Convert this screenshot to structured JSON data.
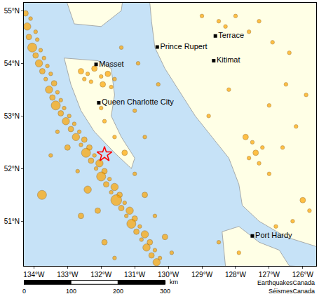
{
  "chart_data": {
    "type": "scatter",
    "xlim": [
      -134.3,
      -125.6
    ],
    "ylim": [
      50.15,
      55.15
    ],
    "grid": false,
    "xticks": [
      {
        "value": -134,
        "label": "134°W"
      },
      {
        "value": -133,
        "label": "133°W"
      },
      {
        "value": -132,
        "label": "132°W"
      },
      {
        "value": -131,
        "label": "131°W"
      },
      {
        "value": -130,
        "label": "130°W"
      },
      {
        "value": -129,
        "label": "129°W"
      },
      {
        "value": -128,
        "label": "128°W"
      },
      {
        "value": -127,
        "label": "127°W"
      },
      {
        "value": -126,
        "label": "126°W"
      }
    ],
    "yticks": [
      {
        "value": 51,
        "label": "51°N"
      },
      {
        "value": 52,
        "label": "52°N"
      },
      {
        "value": 53,
        "label": "53°N"
      },
      {
        "value": 54,
        "label": "54°N"
      },
      {
        "value": 55,
        "label": "55°N"
      }
    ],
    "land": [
      {
        "x": [
          -130.6,
          -130.5,
          -130.4,
          -130.1,
          -129.5,
          -129.2,
          -128.7,
          -128.2,
          -127.9,
          -127.8,
          -127.3,
          -126.5,
          -125.0,
          -125.0,
          -130.6
        ],
        "y": [
          55.5,
          54.8,
          54.3,
          53.9,
          53.3,
          53.0,
          52.6,
          52.2,
          51.7,
          51.3,
          51.0,
          50.7,
          50.4,
          55.5,
          55.5
        ]
      },
      {
        "x": [
          -133.2,
          -132.8,
          -132.0,
          -131.4,
          -131.3,
          -133.2
        ],
        "y": [
          55.5,
          54.75,
          54.7,
          55.0,
          55.5,
          55.5
        ]
      },
      {
        "x": [
          -133.1,
          -132.1,
          -131.7,
          -131.6,
          -131.7,
          -131.4,
          -131.0,
          -131.1,
          -131.6,
          -132.2,
          -132.6,
          -132.9,
          -133.1
        ],
        "y": [
          54.1,
          54.05,
          53.9,
          53.4,
          53.0,
          52.6,
          52.2,
          52.0,
          52.3,
          52.7,
          53.1,
          53.6,
          54.1
        ]
      },
      {
        "x": [
          -128.4,
          -127.9,
          -127.3,
          -126.7,
          -126.4,
          -125.0,
          -125.0,
          -128.2,
          -128.4
        ],
        "y": [
          50.8,
          50.9,
          50.6,
          50.45,
          50.15,
          50.1,
          49.5,
          49.5,
          50.8
        ]
      }
    ],
    "series": [
      {
        "type": "scatter",
        "marker": "circle",
        "color": "#ffa500",
        "x": [
          -134.25,
          -134.1,
          -134.2,
          -133.95,
          -134.15,
          -133.9,
          -134.05,
          -133.8,
          -133.95,
          -133.7,
          -133.85,
          -133.6,
          -133.75,
          -133.5,
          -133.65,
          -133.4,
          -133.55,
          -133.3,
          -133.45,
          -133.2,
          -133.35,
          -133.1,
          -133.2,
          -132.95,
          -133.05,
          -132.8,
          -132.9,
          -132.65,
          -132.75,
          -132.5,
          -132.6,
          -132.35,
          -132.45,
          -132.2,
          -132.3,
          -132.05,
          -132.15,
          -131.9,
          -132.0,
          -131.75,
          -131.85,
          -131.6,
          -131.7,
          -131.45,
          -131.55,
          -131.3,
          -131.4,
          -131.15,
          -131.25,
          -131.0,
          -131.1,
          -130.85,
          -130.95,
          -130.7,
          -130.8,
          -130.55,
          -130.65,
          -130.4,
          -130.5,
          -130.25,
          -130.35
        ],
        "y": [
          54.95,
          54.85,
          54.7,
          54.6,
          54.5,
          54.45,
          54.3,
          54.25,
          54.15,
          54.1,
          54.0,
          53.95,
          53.85,
          53.8,
          53.7,
          53.62,
          53.5,
          53.45,
          53.35,
          53.3,
          53.2,
          53.15,
          53.05,
          53.0,
          52.9,
          52.85,
          52.75,
          52.7,
          52.6,
          52.55,
          52.45,
          52.4,
          52.3,
          52.25,
          52.15,
          52.1,
          52.0,
          51.95,
          51.85,
          51.8,
          51.7,
          51.65,
          51.55,
          51.5,
          51.4,
          51.35,
          51.25,
          51.2,
          51.1,
          51.05,
          50.95,
          50.9,
          50.8,
          50.75,
          50.65,
          50.6,
          50.5,
          50.45,
          50.35,
          50.3,
          50.22
        ],
        "sizes": [
          3,
          2,
          4,
          2,
          3,
          2,
          5,
          2,
          3,
          2,
          4,
          2,
          3,
          2,
          2,
          3,
          4,
          2,
          3,
          2,
          5,
          2,
          3,
          2,
          4,
          2,
          3,
          2,
          4,
          3,
          2,
          3,
          5,
          2,
          3,
          4,
          2,
          3,
          5,
          2,
          3,
          4,
          2,
          3,
          6,
          2,
          3,
          4,
          2,
          3,
          5,
          2,
          3,
          4,
          2,
          3,
          4,
          2,
          3,
          2,
          4
        ]
      },
      {
        "type": "scatter",
        "marker": "circle",
        "color": "#ffa500",
        "x": [
          -133.3,
          -133.0,
          -132.7,
          -132.4,
          -132.1,
          -133.76,
          -133.5,
          -132.6,
          -131.9,
          -131.6
        ],
        "y": [
          52.7,
          52.4,
          51.95,
          51.6,
          51.2,
          51.5,
          52.25,
          51.1,
          50.6,
          50.3
        ],
        "sizes": [
          2,
          3,
          2,
          4,
          3,
          5,
          2,
          3,
          3,
          2
        ]
      },
      {
        "type": "scatter",
        "marker": "circle",
        "color": "#ffa500",
        "x": [
          -131.6,
          -131.3,
          -131.0,
          -130.7,
          -130.4,
          -130.1,
          -129.9,
          -131.9,
          -132.0
        ],
        "y": [
          52.6,
          52.3,
          51.9,
          51.5,
          51.1,
          50.7,
          50.4,
          52.9,
          53.15
        ],
        "sizes": [
          2,
          3,
          2,
          3,
          2,
          3,
          2,
          2,
          2
        ]
      },
      {
        "type": "scatter",
        "marker": "circle",
        "color": "#ffa500",
        "x": [
          -132.6,
          -132.4,
          -132.2,
          -132.0,
          -131.8,
          -131.6,
          -132.3,
          -131.95,
          -132.5,
          -131.7
        ],
        "y": [
          53.85,
          53.8,
          53.9,
          53.75,
          53.8,
          53.7,
          53.65,
          53.6,
          53.7,
          53.55
        ],
        "sizes": [
          3,
          2,
          3,
          2,
          3,
          2,
          2,
          3,
          2,
          2
        ]
      },
      {
        "type": "scatter",
        "marker": "circle",
        "color": "#ffa500",
        "x": [
          -131.0,
          -130.7,
          -130.3,
          -130.9,
          -131.4
        ],
        "y": [
          53.1,
          52.6,
          53.6,
          54.0,
          54.3
        ],
        "sizes": [
          2,
          2,
          2,
          2,
          2
        ]
      },
      {
        "type": "scatter",
        "marker": "circle",
        "color": "#ffa500",
        "x": [
          -128.5,
          -128.3,
          -128.0,
          -127.6,
          -127.3,
          -129.0,
          -127.7,
          -127.5,
          -127.4,
          -127.2,
          -127.6,
          -127.3,
          -127.0,
          -126.6,
          -126.2,
          -125.9,
          -126.5,
          -127.0,
          -128.2,
          -128.8,
          -126.0,
          -125.8,
          -126.3,
          -126.8,
          -127.9,
          -128.5,
          -126.4,
          -126.9
        ],
        "y": [
          54.8,
          54.7,
          54.9,
          54.6,
          54.8,
          54.9,
          52.6,
          52.5,
          52.3,
          52.4,
          52.2,
          52.1,
          51.9,
          52.4,
          52.8,
          53.4,
          53.6,
          53.2,
          53.5,
          53.0,
          51.4,
          51.2,
          51.0,
          50.9,
          50.4,
          50.6,
          54.2,
          54.4
        ],
        "sizes": [
          2,
          2,
          2,
          2,
          2,
          2,
          3,
          2,
          3,
          2,
          2,
          2,
          2,
          2,
          2,
          2,
          2,
          2,
          2,
          2,
          3,
          2,
          2,
          2,
          2,
          2,
          2,
          2
        ]
      },
      {
        "type": "scatter",
        "marker": "star",
        "color": "#ff0000",
        "x": [
          -131.9
        ],
        "y": [
          52.27
        ]
      },
      {
        "type": "scatter",
        "marker": "square",
        "color": "#000000",
        "x": [
          -132.15,
          -132.07,
          -130.33,
          -128.6,
          -128.65,
          -127.5
        ],
        "y": [
          53.98,
          53.25,
          54.31,
          54.52,
          54.05,
          50.72
        ],
        "labels": [
          "Masset",
          "Queen Charlotte City",
          "Prince Rupert",
          "Terrace",
          "Kitimat",
          "Port Hardy"
        ]
      }
    ],
    "scale_bar": {
      "ticks": [
        0,
        100,
        200,
        300
      ],
      "unit": "km"
    },
    "annotations": [
      "EarthquakesCanada",
      "SéismesCanada"
    ]
  }
}
